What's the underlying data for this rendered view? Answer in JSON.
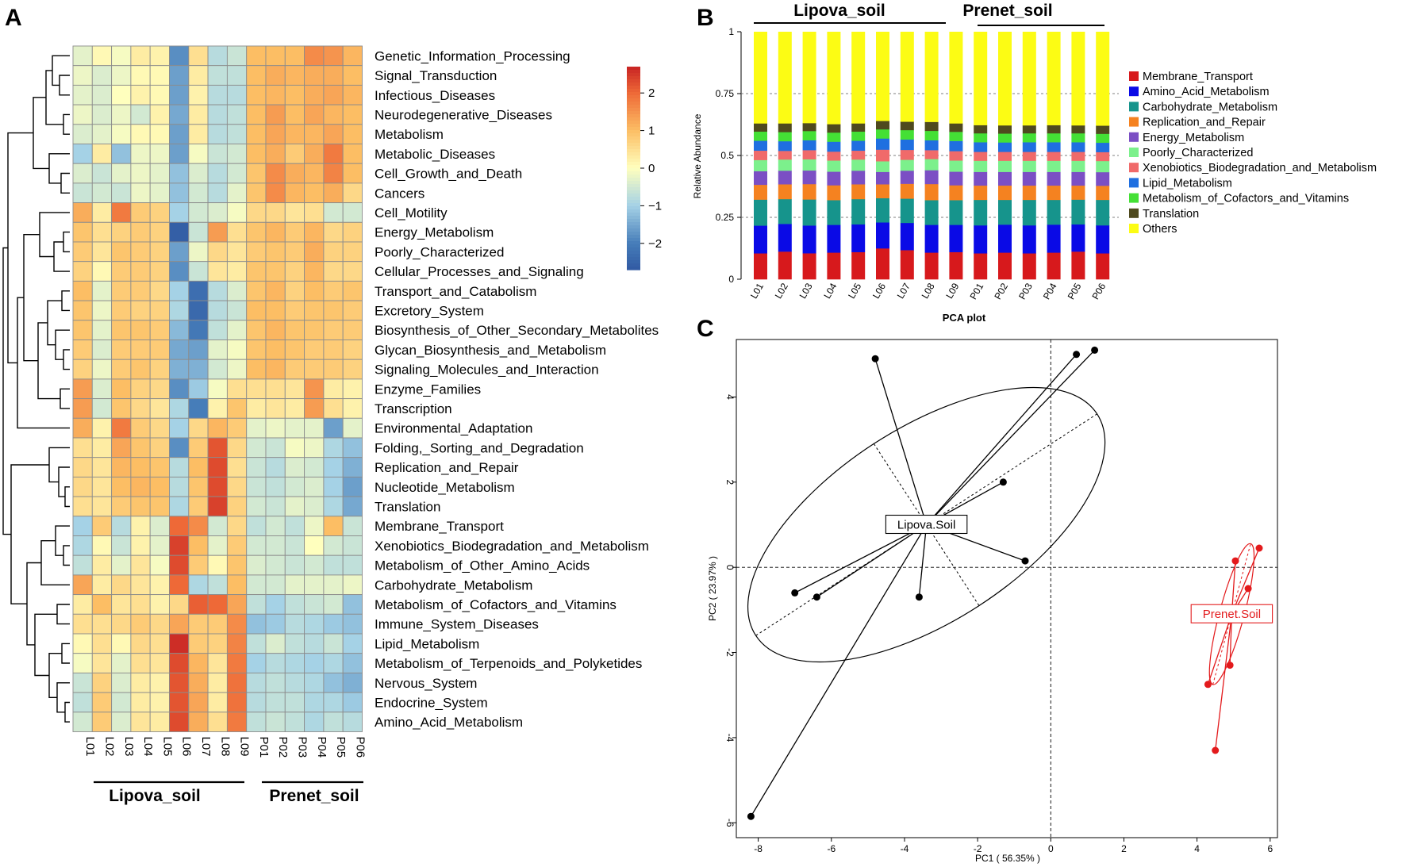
{
  "panels": {
    "a": "A",
    "b": "B",
    "c": "C"
  },
  "chart_data": [
    {
      "type": "heatmap",
      "panel": "A",
      "rows": [
        "Genetic_Information_Processing",
        "Signal_Transduction",
        "Infectious_Diseases",
        "Neurodegenerative_Diseases",
        "Metabolism",
        "Metabolic_Diseases",
        "Cell_Growth_and_Death",
        "Cancers",
        "Cell_Motility",
        "Energy_Metabolism",
        "Poorly_Characterized",
        "Cellular_Processes_and_Signaling",
        "Transport_and_Catabolism",
        "Excretory_System",
        "Biosynthesis_of_Other_Secondary_Metabolites",
        "Glycan_Biosynthesis_and_Metabolism",
        "Signaling_Molecules_and_Interaction",
        "Enzyme_Families",
        "Transcription",
        "Environmental_Adaptation",
        "Folding,_Sorting_and_Degradation",
        "Replication_and_Repair",
        "Nucleotide_Metabolism",
        "Translation",
        "Membrane_Transport",
        "Xenobiotics_Biodegradation_and_Metabolism",
        "Metabolism_of_Other_Amino_Acids",
        "Carbohydrate_Metabolism",
        "Metabolism_of_Cofactors_and_Vitamins",
        "Immune_System_Diseases",
        "Lipid_Metabolism",
        "Metabolism_of_Terpenoids_and_Polyketides",
        "Nervous_System",
        "Endocrine_System",
        "Amino_Acid_Metabolism"
      ],
      "columns": [
        "L01",
        "L02",
        "L03",
        "L04",
        "L05",
        "L06",
        "L07",
        "L08",
        "L09",
        "P01",
        "P02",
        "P03",
        "P04",
        "P05",
        "P06"
      ],
      "values": [
        [
          -0.3,
          0.1,
          -0.1,
          0.3,
          0.2,
          -1.8,
          0.5,
          -0.8,
          -0.6,
          1.0,
          1.0,
          1.0,
          1.6,
          1.5,
          1.1
        ],
        [
          -0.2,
          -0.4,
          -0.2,
          0.1,
          0.1,
          -1.6,
          0.3,
          -0.7,
          -0.7,
          1.0,
          1.2,
          1.1,
          1.2,
          1.2,
          1.0
        ],
        [
          -0.3,
          -0.4,
          0.0,
          0.2,
          0.1,
          -1.6,
          0.2,
          -0.8,
          -0.8,
          1.0,
          1.1,
          1.0,
          1.2,
          1.3,
          1.1
        ],
        [
          -0.2,
          -0.4,
          -0.2,
          -0.5,
          0.2,
          -1.5,
          0.3,
          -0.8,
          -0.7,
          1.0,
          1.4,
          1.0,
          1.3,
          1.1,
          1.0
        ],
        [
          -0.4,
          -0.3,
          -0.1,
          0.1,
          0.1,
          -1.6,
          0.3,
          -0.8,
          -0.7,
          1.0,
          1.3,
          1.1,
          1.1,
          1.3,
          1.0
        ],
        [
          -1.0,
          0.3,
          -1.2,
          -0.2,
          -0.2,
          -1.6,
          -0.1,
          -0.6,
          -0.5,
          1.0,
          1.2,
          0.8,
          1.2,
          1.8,
          1.0
        ],
        [
          -0.4,
          -0.6,
          -0.3,
          -0.2,
          -0.3,
          -1.2,
          -0.4,
          -0.8,
          -0.5,
          0.9,
          1.6,
          1.2,
          1.1,
          1.7,
          1.0
        ],
        [
          -0.6,
          -0.5,
          -0.6,
          -0.2,
          -0.3,
          -1.2,
          -0.5,
          -0.8,
          -0.3,
          0.9,
          1.6,
          1.1,
          1.0,
          1.2,
          0.6
        ],
        [
          1.2,
          0.3,
          1.8,
          0.8,
          0.7,
          -1.0,
          -0.5,
          -0.4,
          -0.1,
          0.6,
          0.6,
          0.4,
          0.5,
          -0.5,
          -0.5
        ],
        [
          0.9,
          0.5,
          0.7,
          0.8,
          0.7,
          -2.6,
          -0.6,
          1.4,
          0.5,
          0.9,
          1.1,
          0.8,
          1.1,
          0.6,
          0.7
        ],
        [
          0.8,
          0.4,
          0.9,
          0.8,
          0.7,
          -1.6,
          -0.2,
          0.6,
          0.4,
          0.8,
          0.9,
          0.8,
          1.2,
          0.7,
          0.7
        ],
        [
          0.7,
          0.1,
          0.8,
          0.8,
          0.7,
          -1.8,
          -0.6,
          0.4,
          0.3,
          0.9,
          0.9,
          0.7,
          1.1,
          0.6,
          0.6
        ],
        [
          1.0,
          -0.3,
          0.8,
          0.8,
          0.6,
          -1.0,
          -2.3,
          -0.8,
          -0.4,
          0.9,
          1.1,
          0.7,
          1.0,
          0.8,
          0.9
        ],
        [
          0.9,
          -0.2,
          0.8,
          0.7,
          0.7,
          -0.9,
          -2.4,
          -0.8,
          -0.6,
          1.0,
          1.0,
          0.8,
          0.9,
          0.9,
          0.8
        ],
        [
          0.9,
          -0.3,
          0.9,
          0.9,
          0.8,
          -1.3,
          -2.1,
          -0.7,
          -0.3,
          0.9,
          1.1,
          0.9,
          0.9,
          0.8,
          0.8
        ],
        [
          0.8,
          -0.4,
          0.8,
          0.8,
          0.8,
          -1.5,
          -1.6,
          -0.3,
          -0.1,
          0.9,
          1.0,
          0.9,
          0.8,
          0.8,
          0.7
        ],
        [
          0.7,
          -0.2,
          0.8,
          0.9,
          0.7,
          -1.4,
          -1.4,
          -0.5,
          -0.2,
          1.0,
          1.1,
          0.8,
          0.8,
          0.8,
          0.7
        ],
        [
          1.4,
          -0.4,
          1.0,
          0.7,
          0.6,
          -1.8,
          -1.1,
          -0.1,
          0.5,
          0.5,
          0.5,
          0.4,
          1.5,
          0.3,
          0.2
        ],
        [
          1.4,
          -0.5,
          0.9,
          0.6,
          0.4,
          -0.9,
          -2.0,
          0.2,
          0.9,
          0.3,
          0.4,
          0.3,
          1.4,
          0.5,
          0.2
        ],
        [
          1.2,
          0.2,
          1.8,
          0.8,
          0.6,
          -1.0,
          0.6,
          1.1,
          0.8,
          -0.3,
          -0.2,
          -0.3,
          -0.3,
          -1.6,
          -0.3
        ],
        [
          0.5,
          0.3,
          1.3,
          0.9,
          0.7,
          -1.8,
          0.8,
          2.2,
          0.6,
          -0.5,
          -0.6,
          -0.1,
          -0.2,
          -0.9,
          -1.2
        ],
        [
          0.6,
          0.4,
          1.1,
          1.0,
          0.9,
          -0.8,
          1.0,
          2.3,
          0.5,
          -0.6,
          -0.8,
          -0.4,
          -0.5,
          -1.0,
          -1.4
        ],
        [
          0.6,
          0.4,
          1.0,
          1.1,
          1.0,
          -0.8,
          0.9,
          2.3,
          0.6,
          -0.6,
          -0.7,
          -0.5,
          -0.4,
          -1.0,
          -1.6
        ],
        [
          0.5,
          0.4,
          0.8,
          0.9,
          0.9,
          -0.9,
          0.8,
          2.4,
          0.7,
          -0.5,
          -0.6,
          -0.3,
          -0.4,
          -0.9,
          -1.5
        ],
        [
          -1.0,
          0.8,
          -0.8,
          0.2,
          -0.4,
          2.0,
          1.6,
          -0.5,
          0.6,
          -0.7,
          -0.5,
          -0.7,
          -0.2,
          1.0,
          -0.6
        ],
        [
          -0.9,
          0.1,
          -0.6,
          0.2,
          -0.3,
          2.4,
          1.0,
          -0.3,
          0.8,
          -0.5,
          -0.5,
          -0.6,
          0.0,
          -0.5,
          -0.6
        ],
        [
          -0.7,
          0.3,
          -0.3,
          0.4,
          -0.1,
          2.3,
          0.8,
          0.1,
          0.9,
          -0.4,
          -0.5,
          -0.6,
          -0.5,
          -0.7,
          -0.7
        ],
        [
          1.3,
          0.3,
          0.6,
          0.4,
          0.2,
          2.0,
          -0.9,
          -0.7,
          1.0,
          -0.5,
          -0.5,
          -0.3,
          -0.3,
          -0.3,
          -0.2
        ],
        [
          0.3,
          1.0,
          0.4,
          0.5,
          0.2,
          0.6,
          2.1,
          2.0,
          1.3,
          -0.7,
          -1.0,
          -0.7,
          -0.6,
          -0.5,
          -1.2
        ],
        [
          0.5,
          0.5,
          0.6,
          0.8,
          0.6,
          1.3,
          0.8,
          0.8,
          1.6,
          -1.2,
          -1.1,
          -0.8,
          -0.9,
          -1.1,
          -1.2
        ],
        [
          0.1,
          0.5,
          0.1,
          0.6,
          0.5,
          2.6,
          0.8,
          0.7,
          1.7,
          -0.7,
          -0.4,
          -0.7,
          -0.8,
          -0.6,
          -1.0
        ],
        [
          -0.1,
          0.4,
          -0.3,
          0.5,
          0.4,
          2.3,
          1.1,
          0.4,
          1.8,
          -1.0,
          -0.8,
          -0.9,
          -1.0,
          -0.9,
          -1.2
        ],
        [
          -0.6,
          0.7,
          -0.4,
          0.3,
          0.2,
          2.2,
          1.2,
          0.3,
          1.9,
          -0.8,
          -0.7,
          -0.8,
          -0.9,
          -1.2,
          -1.4
        ],
        [
          -0.7,
          0.8,
          -0.5,
          0.3,
          0.2,
          2.2,
          1.3,
          0.3,
          1.9,
          -0.8,
          -0.7,
          -0.7,
          -0.9,
          -0.9,
          -1.1
        ],
        [
          -0.5,
          0.8,
          -0.4,
          0.4,
          0.3,
          2.3,
          1.2,
          0.5,
          1.8,
          -0.7,
          -0.6,
          -0.7,
          -0.9,
          -0.7,
          -0.8
        ]
      ],
      "colorbar": {
        "range": [
          -2.7,
          2.7
        ],
        "ticks": [
          2,
          1,
          0,
          -1,
          -2
        ],
        "tick_labels": [
          "2",
          "1",
          "0",
          "−1",
          "−2"
        ]
      },
      "groups": [
        {
          "name": "Lipova_soil"
        },
        {
          "name": "Prenet_soil"
        }
      ]
    },
    {
      "type": "bar",
      "stacked": true,
      "panel": "B",
      "categories": [
        "L01",
        "L02",
        "L03",
        "L04",
        "L05",
        "L06",
        "L07",
        "L08",
        "L09",
        "P01",
        "P02",
        "P03",
        "P04",
        "P05",
        "P06"
      ],
      "ylabel": "Relative Abundance",
      "ylim": [
        0,
        1
      ],
      "yticks": [
        0,
        0.25,
        0.5,
        0.75,
        1
      ],
      "ytick_labels": [
        "0",
        "0.25",
        "0.5",
        "0.75",
        "1"
      ],
      "groups": [
        {
          "name": "Lipova_soil"
        },
        {
          "name": "Prenet_soil"
        }
      ],
      "series": [
        {
          "name": "Membrane_Transport",
          "color": "#d7191c",
          "values": [
            0.105,
            0.112,
            0.105,
            0.108,
            0.11,
            0.125,
            0.118,
            0.108,
            0.11,
            0.105,
            0.108,
            0.105,
            0.108,
            0.112,
            0.105
          ]
        },
        {
          "name": "Amino_Acid_Metabolism",
          "color": "#0a0ae6",
          "values": [
            0.112,
            0.112,
            0.112,
            0.112,
            0.112,
            0.105,
            0.11,
            0.112,
            0.11,
            0.113,
            0.113,
            0.113,
            0.113,
            0.11,
            0.113
          ]
        },
        {
          "name": "Carbohydrate_Metabolism",
          "color": "#16948c",
          "values": [
            0.105,
            0.1,
            0.105,
            0.1,
            0.102,
            0.098,
            0.098,
            0.1,
            0.1,
            0.103,
            0.1,
            0.103,
            0.1,
            0.1,
            0.103
          ]
        },
        {
          "name": "Replication_and_Repair",
          "color": "#f58220",
          "values": [
            0.06,
            0.06,
            0.062,
            0.06,
            0.06,
            0.056,
            0.06,
            0.065,
            0.06,
            0.058,
            0.058,
            0.058,
            0.058,
            0.057,
            0.057
          ]
        },
        {
          "name": "Energy_Metabolism",
          "color": "#7b4fc4",
          "values": [
            0.055,
            0.055,
            0.055,
            0.055,
            0.055,
            0.05,
            0.053,
            0.056,
            0.055,
            0.055,
            0.055,
            0.055,
            0.055,
            0.055,
            0.055
          ]
        },
        {
          "name": "Poorly_Characterized",
          "color": "#7cf08c",
          "values": [
            0.045,
            0.045,
            0.045,
            0.045,
            0.045,
            0.043,
            0.044,
            0.045,
            0.045,
            0.045,
            0.045,
            0.045,
            0.045,
            0.045,
            0.045
          ]
        },
        {
          "name": "Xenobiotics_Biodegradation_and_Metabolism",
          "color": "#f06a6a",
          "values": [
            0.038,
            0.035,
            0.037,
            0.036,
            0.036,
            0.047,
            0.04,
            0.036,
            0.038,
            0.036,
            0.036,
            0.036,
            0.036,
            0.036,
            0.036
          ]
        },
        {
          "name": "Lipid_Metabolism",
          "color": "#1f6fe0",
          "values": [
            0.04,
            0.039,
            0.04,
            0.04,
            0.04,
            0.045,
            0.042,
            0.04,
            0.041,
            0.039,
            0.038,
            0.039,
            0.039,
            0.039,
            0.038
          ]
        },
        {
          "name": "Metabolism_of_Cofactors_and_Vitamins",
          "color": "#44e035",
          "values": [
            0.037,
            0.037,
            0.037,
            0.037,
            0.037,
            0.037,
            0.038,
            0.038,
            0.037,
            0.036,
            0.036,
            0.036,
            0.036,
            0.036,
            0.036
          ]
        },
        {
          "name": "Translation",
          "color": "#4f4a1e",
          "values": [
            0.033,
            0.035,
            0.032,
            0.034,
            0.033,
            0.034,
            0.034,
            0.036,
            0.034,
            0.033,
            0.033,
            0.032,
            0.033,
            0.032,
            0.033
          ]
        },
        {
          "name": "Others",
          "color": "#fcfc14",
          "values": [
            0.37,
            0.37,
            0.368,
            0.373,
            0.37,
            0.36,
            0.363,
            0.364,
            0.37,
            0.377,
            0.378,
            0.378,
            0.377,
            0.378,
            0.379
          ]
        }
      ]
    },
    {
      "type": "scatter",
      "panel": "C",
      "title": "PCA plot",
      "xlabel": "PC1 ( 56.35% )",
      "ylabel": "PC2 ( 23.97% )",
      "xlim": [
        -8.6,
        6.2
      ],
      "ylim": [
        -6.35,
        5.35
      ],
      "xticks": [
        -8,
        -6,
        -4,
        -2,
        0,
        2,
        4,
        6
      ],
      "xtick_labels": [
        "-8",
        "-6",
        "-4",
        "-2",
        "0",
        "2",
        "4",
        "6"
      ],
      "yticks": [
        -6,
        -4,
        -2,
        0,
        2,
        4
      ],
      "ytick_labels": [
        "-6",
        "-4",
        "-2",
        "0",
        "2",
        "4"
      ],
      "series": [
        {
          "name": "Lipova.Soil",
          "color": "#000000",
          "centroid": [
            -3.4,
            1.0
          ],
          "ellipse": {
            "cx": -3.4,
            "cy": 1.0,
            "rx_deg": 5.3,
            "ry_deg": 2.2,
            "angle": 33
          },
          "points": [
            [
              -4.8,
              4.9
            ],
            [
              0.7,
              5.0
            ],
            [
              1.2,
              5.1
            ],
            [
              -1.3,
              2.0
            ],
            [
              -0.7,
              0.15
            ],
            [
              -3.6,
              -0.7
            ],
            [
              -6.4,
              -0.7
            ],
            [
              -7.0,
              -0.6
            ],
            [
              -8.2,
              -5.85
            ]
          ]
        },
        {
          "name": "Prenet.Soil",
          "color": "#e31a1c",
          "centroid": [
            4.95,
            -1.1
          ],
          "ellipse": {
            "cx": 4.95,
            "cy": -1.1,
            "rx_deg": 1.9,
            "ry_deg": 0.28,
            "angle": 75
          },
          "points": [
            [
              5.7,
              0.45
            ],
            [
              5.05,
              0.15
            ],
            [
              5.4,
              -0.5
            ],
            [
              4.9,
              -2.3
            ],
            [
              4.3,
              -2.75
            ],
            [
              4.5,
              -4.3
            ]
          ]
        }
      ]
    }
  ]
}
